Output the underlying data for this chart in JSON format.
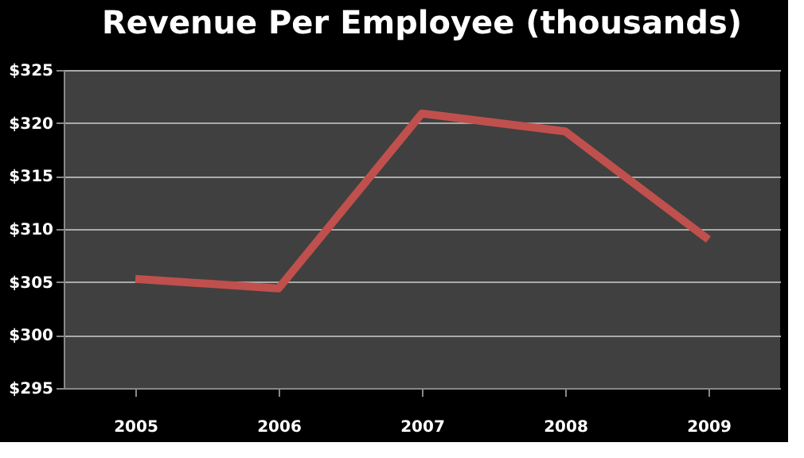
{
  "chart_data": {
    "type": "line",
    "title": "Revenue Per Employee (thousands)",
    "categories": [
      "2005",
      "2006",
      "2007",
      "2008",
      "2009"
    ],
    "series": [
      {
        "color": "#c0504d",
        "values": [
          305.3,
          304.4,
          320.9,
          319.2,
          309.0
        ]
      }
    ],
    "ylim": [
      295,
      325
    ],
    "yticks": [
      {
        "value": 295,
        "label": "$295"
      },
      {
        "value": 300,
        "label": "$300"
      },
      {
        "value": 305,
        "label": "$305"
      },
      {
        "value": 310,
        "label": "$310"
      },
      {
        "value": 315,
        "label": "$315"
      },
      {
        "value": 320,
        "label": "$320"
      },
      {
        "value": 325,
        "label": "$325"
      }
    ],
    "grid": "y",
    "legend": false,
    "marker": "none",
    "line_style": "solid"
  }
}
